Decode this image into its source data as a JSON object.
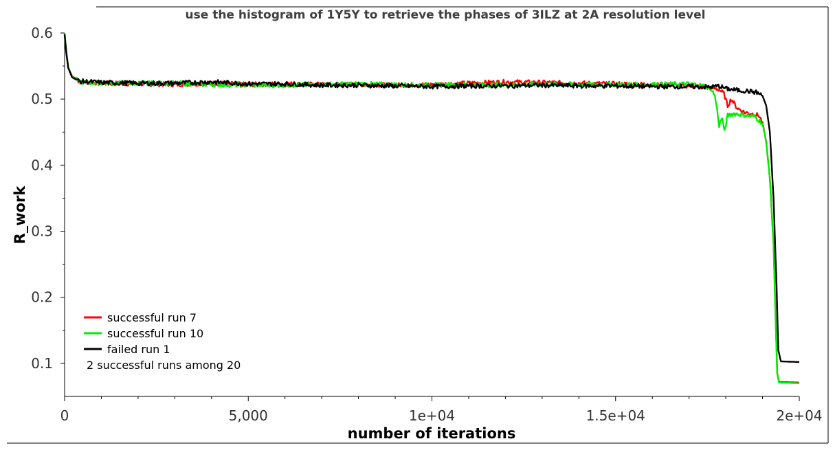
{
  "chart_data": {
    "type": "line",
    "title": "use the histogram of 1Y5Y to retrieve the phases of 3ILZ at 2A resolution level",
    "xlabel": "number of iterations",
    "ylabel": "R_work",
    "xlim": [
      0,
      20000
    ],
    "ylim": [
      0.05,
      0.6
    ],
    "x_ticks": [
      0,
      5000,
      10000,
      15000,
      20000
    ],
    "x_tick_labels": [
      "0",
      "5,000",
      "1e+04",
      "1.5e+04",
      "2e+04"
    ],
    "y_ticks": [
      0.1,
      0.2,
      0.3,
      0.4,
      0.5,
      0.6
    ],
    "y_tick_labels": [
      "0.1",
      "0.2",
      "0.3",
      "0.4",
      "0.5",
      "0.6"
    ],
    "grid": false,
    "legend_position": "bottom-left",
    "annotation": "2 successful runs among 20",
    "series": [
      {
        "name": "successful run 7",
        "color": "#ff0000",
        "points": [
          [
            0,
            0.598
          ],
          [
            50,
            0.57
          ],
          [
            100,
            0.548
          ],
          [
            200,
            0.535
          ],
          [
            400,
            0.527
          ],
          [
            1000,
            0.524
          ],
          [
            2000,
            0.523
          ],
          [
            3000,
            0.522
          ],
          [
            4000,
            0.524
          ],
          [
            5000,
            0.522
          ],
          [
            6000,
            0.523
          ],
          [
            7000,
            0.522
          ],
          [
            8000,
            0.522
          ],
          [
            9000,
            0.521
          ],
          [
            10000,
            0.522
          ],
          [
            11000,
            0.524
          ],
          [
            12000,
            0.526
          ],
          [
            13000,
            0.525
          ],
          [
            14000,
            0.524
          ],
          [
            15000,
            0.523
          ],
          [
            16000,
            0.522
          ],
          [
            17000,
            0.52
          ],
          [
            17500,
            0.518
          ],
          [
            17800,
            0.515
          ],
          [
            17950,
            0.508
          ],
          [
            18050,
            0.49
          ],
          [
            18150,
            0.5
          ],
          [
            18300,
            0.487
          ],
          [
            18500,
            0.48
          ],
          [
            18700,
            0.478
          ],
          [
            18900,
            0.475
          ],
          [
            19000,
            0.465
          ],
          [
            19100,
            0.435
          ],
          [
            19200,
            0.38
          ],
          [
            19300,
            0.28
          ],
          [
            19360,
            0.16
          ],
          [
            19400,
            0.085
          ],
          [
            19450,
            0.072
          ],
          [
            20000,
            0.071
          ]
        ]
      },
      {
        "name": "successful run 10",
        "color": "#00ee00",
        "points": [
          [
            0,
            0.6
          ],
          [
            50,
            0.57
          ],
          [
            100,
            0.548
          ],
          [
            200,
            0.534
          ],
          [
            400,
            0.526
          ],
          [
            1000,
            0.524
          ],
          [
            2000,
            0.524
          ],
          [
            3000,
            0.524
          ],
          [
            4000,
            0.522
          ],
          [
            5000,
            0.521
          ],
          [
            6000,
            0.521
          ],
          [
            7000,
            0.522
          ],
          [
            8000,
            0.523
          ],
          [
            9000,
            0.522
          ],
          [
            10000,
            0.521
          ],
          [
            11000,
            0.522
          ],
          [
            12000,
            0.521
          ],
          [
            13000,
            0.523
          ],
          [
            14000,
            0.522
          ],
          [
            15000,
            0.522
          ],
          [
            16000,
            0.522
          ],
          [
            17000,
            0.523
          ],
          [
            17400,
            0.52
          ],
          [
            17600,
            0.516
          ],
          [
            17700,
            0.505
          ],
          [
            17760,
            0.485
          ],
          [
            17820,
            0.46
          ],
          [
            17900,
            0.472
          ],
          [
            17960,
            0.45
          ],
          [
            18050,
            0.475
          ],
          [
            18200,
            0.478
          ],
          [
            18500,
            0.476
          ],
          [
            18800,
            0.473
          ],
          [
            19000,
            0.463
          ],
          [
            19100,
            0.435
          ],
          [
            19200,
            0.38
          ],
          [
            19300,
            0.28
          ],
          [
            19360,
            0.16
          ],
          [
            19400,
            0.085
          ],
          [
            19450,
            0.071
          ],
          [
            20000,
            0.07
          ]
        ]
      },
      {
        "name": "failed run 1",
        "color": "#000000",
        "points": [
          [
            0,
            0.598
          ],
          [
            50,
            0.568
          ],
          [
            100,
            0.547
          ],
          [
            200,
            0.533
          ],
          [
            400,
            0.527
          ],
          [
            1000,
            0.525
          ],
          [
            2000,
            0.524
          ],
          [
            3000,
            0.524
          ],
          [
            4000,
            0.526
          ],
          [
            5000,
            0.523
          ],
          [
            6000,
            0.523
          ],
          [
            7000,
            0.521
          ],
          [
            8000,
            0.521
          ],
          [
            9000,
            0.52
          ],
          [
            10000,
            0.519
          ],
          [
            11000,
            0.52
          ],
          [
            12000,
            0.52
          ],
          [
            13000,
            0.521
          ],
          [
            14000,
            0.52
          ],
          [
            15000,
            0.52
          ],
          [
            16000,
            0.519
          ],
          [
            17000,
            0.519
          ],
          [
            17600,
            0.518
          ],
          [
            17800,
            0.52
          ],
          [
            18000,
            0.516
          ],
          [
            18200,
            0.514
          ],
          [
            18400,
            0.513
          ],
          [
            18600,
            0.512
          ],
          [
            18850,
            0.51
          ],
          [
            19000,
            0.505
          ],
          [
            19100,
            0.49
          ],
          [
            19200,
            0.45
          ],
          [
            19300,
            0.35
          ],
          [
            19380,
            0.22
          ],
          [
            19430,
            0.12
          ],
          [
            19500,
            0.103
          ],
          [
            20000,
            0.102
          ]
        ]
      }
    ]
  }
}
